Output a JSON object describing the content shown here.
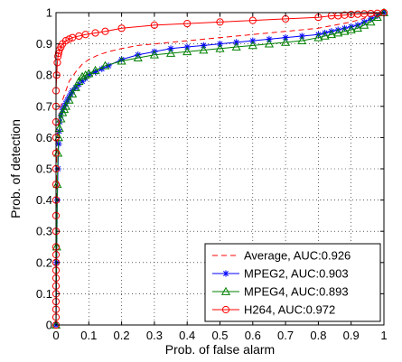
{
  "chart_data": {
    "type": "line",
    "title": "",
    "xlabel": "Prob. of false alarm",
    "ylabel": "Prob. of detection",
    "xlim": [
      0,
      1
    ],
    "ylim": [
      0,
      1
    ],
    "xticks": [
      0,
      0.1,
      0.2,
      0.3,
      0.4,
      0.5,
      0.6,
      0.7,
      0.8,
      0.9,
      1
    ],
    "xtick_labels": [
      "0",
      "0.1",
      "0.2",
      "0.3",
      "0.4",
      "0.5",
      "0.6",
      "0.7",
      "0.8",
      "0.9",
      "1"
    ],
    "yticks": [
      0,
      0.1,
      0.2,
      0.3,
      0.4,
      0.5,
      0.6,
      0.7,
      0.8,
      0.9,
      1
    ],
    "ytick_labels": [
      "0",
      "0.1",
      "0.2",
      "0.3",
      "0.4",
      "0.5",
      "0.6",
      "0.7",
      "0.8",
      "0.9",
      "1"
    ],
    "grid": true,
    "legend_position": "bottom-right",
    "series": [
      {
        "name": "Average, AUC:0.926",
        "color": "#ff0000",
        "style": "dashed",
        "marker": "none",
        "x": [
          0,
          0.002,
          0.005,
          0.01,
          0.015,
          0.02,
          0.03,
          0.04,
          0.06,
          0.08,
          0.1,
          0.13,
          0.16,
          0.2,
          0.25,
          0.3,
          0.4,
          0.5,
          0.6,
          0.7,
          0.8,
          0.85,
          0.9,
          0.95,
          1.0
        ],
        "y": [
          0,
          0.55,
          0.62,
          0.67,
          0.7,
          0.72,
          0.75,
          0.78,
          0.81,
          0.835,
          0.85,
          0.865,
          0.875,
          0.885,
          0.895,
          0.9,
          0.91,
          0.92,
          0.93,
          0.94,
          0.95,
          0.96,
          0.97,
          0.985,
          1.0
        ]
      },
      {
        "name": "MPEG2, AUC:0.903",
        "color": "#0000ff",
        "style": "solid",
        "marker": "asterisk",
        "x": [
          0,
          0.002,
          0.004,
          0.006,
          0.008,
          0.01,
          0.012,
          0.015,
          0.02,
          0.025,
          0.03,
          0.035,
          0.04,
          0.045,
          0.05,
          0.06,
          0.07,
          0.08,
          0.09,
          0.1,
          0.12,
          0.14,
          0.16,
          0.2,
          0.25,
          0.3,
          0.35,
          0.4,
          0.45,
          0.5,
          0.55,
          0.6,
          0.65,
          0.7,
          0.75,
          0.8,
          0.82,
          0.84,
          0.86,
          0.88,
          0.9,
          0.92,
          0.94,
          0.96,
          0.98,
          1.0
        ],
        "y": [
          0,
          0.2,
          0.4,
          0.5,
          0.58,
          0.62,
          0.65,
          0.67,
          0.69,
          0.7,
          0.71,
          0.72,
          0.73,
          0.74,
          0.75,
          0.76,
          0.77,
          0.78,
          0.79,
          0.8,
          0.81,
          0.82,
          0.83,
          0.85,
          0.865,
          0.875,
          0.885,
          0.89,
          0.895,
          0.9,
          0.905,
          0.91,
          0.915,
          0.92,
          0.925,
          0.93,
          0.935,
          0.94,
          0.945,
          0.95,
          0.955,
          0.96,
          0.97,
          0.98,
          0.99,
          1.0
        ]
      },
      {
        "name": "MPEG4, AUC:0.893",
        "color": "#008000",
        "style": "solid",
        "marker": "triangle",
        "x": [
          0,
          0.002,
          0.004,
          0.006,
          0.008,
          0.01,
          0.015,
          0.02,
          0.025,
          0.03,
          0.04,
          0.05,
          0.06,
          0.07,
          0.08,
          0.09,
          0.1,
          0.12,
          0.15,
          0.2,
          0.25,
          0.3,
          0.35,
          0.4,
          0.45,
          0.5,
          0.55,
          0.6,
          0.65,
          0.7,
          0.75,
          0.8,
          0.82,
          0.84,
          0.86,
          0.88,
          0.9,
          0.92,
          0.94,
          0.96,
          0.98,
          1.0
        ],
        "y": [
          0,
          0.25,
          0.45,
          0.55,
          0.6,
          0.63,
          0.66,
          0.68,
          0.69,
          0.7,
          0.72,
          0.74,
          0.76,
          0.78,
          0.795,
          0.8,
          0.805,
          0.815,
          0.83,
          0.845,
          0.855,
          0.865,
          0.87,
          0.875,
          0.88,
          0.885,
          0.89,
          0.895,
          0.9,
          0.905,
          0.91,
          0.92,
          0.925,
          0.93,
          0.935,
          0.94,
          0.945,
          0.95,
          0.96,
          0.97,
          0.985,
          1.0
        ]
      },
      {
        "name": "H264, AUC:0.972",
        "color": "#ff0000",
        "style": "solid",
        "marker": "circle",
        "x": [
          0,
          0,
          0,
          0,
          0,
          0,
          0,
          0,
          0,
          0,
          0,
          0,
          0,
          0,
          0,
          0,
          0,
          0,
          0,
          0,
          0,
          0.002,
          0.004,
          0.006,
          0.008,
          0.01,
          0.015,
          0.02,
          0.03,
          0.04,
          0.05,
          0.07,
          0.09,
          0.12,
          0.15,
          0.2,
          0.3,
          0.4,
          0.5,
          0.6,
          0.7,
          0.8,
          0.84,
          0.86,
          0.88,
          0.9,
          0.92,
          0.94,
          0.96,
          0.98,
          1.0
        ],
        "y": [
          0,
          0.025,
          0.05,
          0.075,
          0.1,
          0.125,
          0.15,
          0.175,
          0.2,
          0.225,
          0.25,
          0.3,
          0.35,
          0.4,
          0.45,
          0.5,
          0.55,
          0.6,
          0.65,
          0.7,
          0.75,
          0.8,
          0.84,
          0.86,
          0.87,
          0.88,
          0.89,
          0.9,
          0.91,
          0.915,
          0.92,
          0.925,
          0.93,
          0.935,
          0.94,
          0.95,
          0.96,
          0.965,
          0.97,
          0.975,
          0.98,
          0.985,
          0.99,
          0.99,
          0.992,
          0.994,
          0.995,
          0.996,
          0.997,
          0.998,
          1.0
        ]
      }
    ]
  }
}
